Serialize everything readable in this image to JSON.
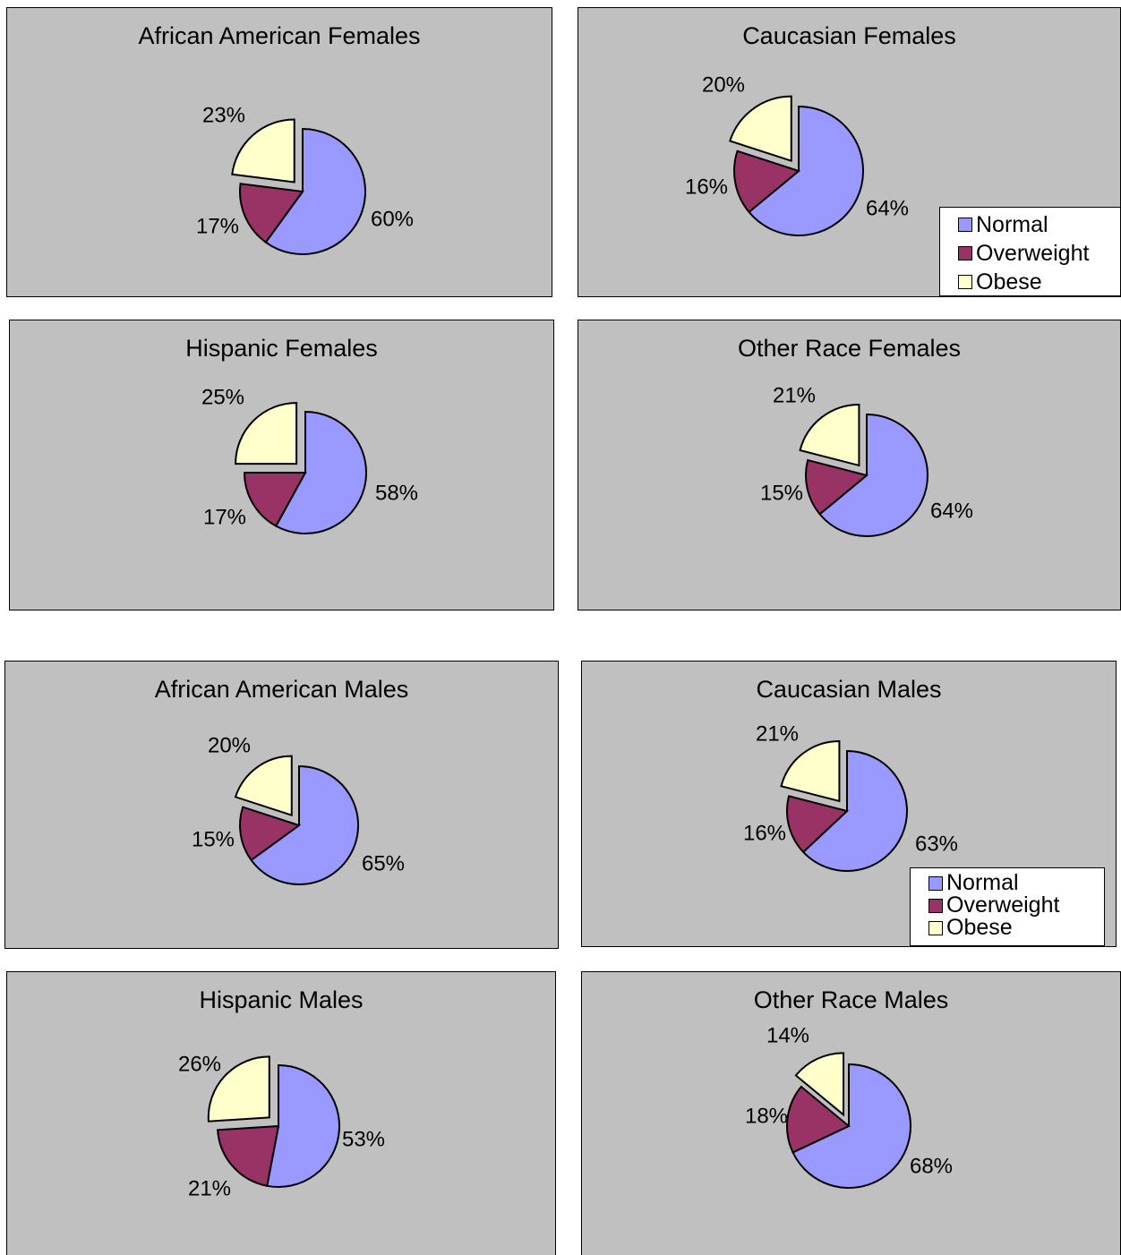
{
  "colors": {
    "normal": "#9999ff",
    "overweight": "#993366",
    "obese": "#ffffcc"
  },
  "legend_labels": [
    "Normal",
    "Overweight",
    "Obese"
  ],
  "chart_data": [
    {
      "type": "pie",
      "title": "African American Females",
      "categories": [
        "Normal",
        "Overweight",
        "Obese"
      ],
      "values": [
        60,
        17,
        23
      ],
      "labels": [
        "60%",
        "17%",
        "23%"
      ]
    },
    {
      "type": "pie",
      "title": "Caucasian Females",
      "categories": [
        "Normal",
        "Overweight",
        "Obese"
      ],
      "values": [
        64,
        16,
        20
      ],
      "labels": [
        "64%",
        "16%",
        "20%"
      ],
      "legend": "bottom-right"
    },
    {
      "type": "pie",
      "title": "Hispanic Females",
      "categories": [
        "Normal",
        "Overweight",
        "Obese"
      ],
      "values": [
        58,
        17,
        25
      ],
      "labels": [
        "58%",
        "17%",
        "25%"
      ]
    },
    {
      "type": "pie",
      "title": "Other Race Females",
      "categories": [
        "Normal",
        "Overweight",
        "Obese"
      ],
      "values": [
        64,
        15,
        21
      ],
      "labels": [
        "64%",
        "15%",
        "21%"
      ]
    },
    {
      "type": "pie",
      "title": "African American Males",
      "categories": [
        "Normal",
        "Overweight",
        "Obese"
      ],
      "values": [
        65,
        15,
        20
      ],
      "labels": [
        "65%",
        "15%",
        "20%"
      ]
    },
    {
      "type": "pie",
      "title": "Caucasian Males",
      "categories": [
        "Normal",
        "Overweight",
        "Obese"
      ],
      "values": [
        63,
        16,
        21
      ],
      "labels": [
        "63%",
        "16%",
        "21%"
      ],
      "legend": "bottom-right"
    },
    {
      "type": "pie",
      "title": "Hispanic Males",
      "categories": [
        "Normal",
        "Overweight",
        "Obese"
      ],
      "values": [
        53,
        21,
        26
      ],
      "labels": [
        "53%",
        "21%",
        "26%"
      ]
    },
    {
      "type": "pie",
      "title": "Other Race Males",
      "categories": [
        "Normal",
        "Overweight",
        "Obese"
      ],
      "values": [
        68,
        18,
        14
      ],
      "labels": [
        "68%",
        "18%",
        "14%"
      ]
    }
  ]
}
